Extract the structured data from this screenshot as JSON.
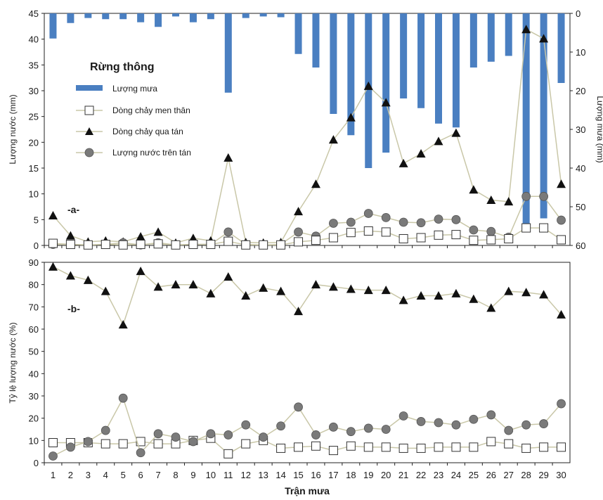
{
  "chart_data": [
    {
      "panel": "a",
      "type": "bar+line",
      "panel_label": "-a-",
      "legend_title": "Rừng thông",
      "legend_placement": "upper-left",
      "xlabel": "",
      "ylabel_left": "Lượng nước (mm)",
      "ylabel_right": "Lượng mưa (mm)",
      "ylim_left": [
        0,
        45
      ],
      "yticks_left": [
        0,
        5,
        10,
        15,
        20,
        25,
        30,
        35,
        40,
        45
      ],
      "ylim_right_inverted": [
        0,
        60
      ],
      "yticks_right": [
        0,
        10,
        20,
        30,
        40,
        50,
        60
      ],
      "grid": false,
      "categories": [
        "1",
        "2",
        "3",
        "4",
        "5",
        "6",
        "7",
        "8",
        "9",
        "10",
        "11",
        "12",
        "13",
        "14",
        "15",
        "16",
        "17",
        "18",
        "19",
        "20",
        "21",
        "22",
        "23",
        "24",
        "25",
        "26",
        "27",
        "28",
        "29",
        "30"
      ],
      "series": [
        {
          "name": "Lượng mưa",
          "kind": "bar",
          "axis": "right",
          "color": "#4a7fc1",
          "values": [
            6.5,
            2.5,
            1.2,
            1.5,
            1.5,
            2.3,
            3.5,
            0.8,
            2.3,
            1.5,
            20.5,
            1.2,
            0.8,
            1.0,
            10.5,
            14.0,
            26.0,
            31.5,
            40.0,
            36.0,
            22.0,
            24.5,
            28.5,
            29.5,
            14.0,
            12.5,
            11.0,
            55.0,
            53.0,
            18.0
          ]
        },
        {
          "name": "Dòng chảy men thân",
          "kind": "line",
          "marker": "square-open",
          "axis": "left",
          "values": [
            0.4,
            0.2,
            0.1,
            0.2,
            0.1,
            0.2,
            0.3,
            0.1,
            0.2,
            0.2,
            0.8,
            0.1,
            0.1,
            0.1,
            0.7,
            1.0,
            1.5,
            2.5,
            2.8,
            2.6,
            1.3,
            1.5,
            2.0,
            2.1,
            1.0,
            1.1,
            1.3,
            3.4,
            3.4,
            1.1
          ]
        },
        {
          "name": "Dòng chảy qua tán",
          "kind": "line",
          "marker": "triangle",
          "axis": "left",
          "values": [
            5.8,
            1.9,
            0.7,
            0.9,
            0.7,
            1.7,
            2.6,
            0.5,
            1.4,
            0.9,
            17.0,
            0.6,
            0.5,
            0.6,
            6.6,
            11.9,
            20.5,
            24.8,
            30.9,
            27.7,
            15.9,
            17.8,
            20.2,
            21.8,
            10.8,
            8.8,
            8.5,
            41.9,
            40.1,
            11.9
          ]
        },
        {
          "name": "Lượng nước trên tán",
          "kind": "line",
          "marker": "circle",
          "axis": "left",
          "values": [
            0.2,
            0.2,
            0.1,
            0.2,
            0.5,
            0.1,
            0.5,
            0.1,
            0.2,
            0.2,
            2.6,
            0.2,
            0.1,
            0.2,
            2.6,
            1.8,
            4.3,
            4.5,
            6.2,
            5.4,
            4.5,
            4.4,
            5.1,
            5.0,
            3.0,
            2.7,
            1.6,
            9.5,
            9.5,
            4.9
          ]
        }
      ]
    },
    {
      "panel": "b",
      "type": "line",
      "panel_label": "-b-",
      "xlabel": "Trận mưa",
      "ylabel": "Tỷ lệ lượng nước (%)",
      "ylim": [
        0,
        90
      ],
      "yticks": [
        0,
        10,
        20,
        30,
        40,
        50,
        60,
        70,
        80,
        90
      ],
      "grid": false,
      "categories": [
        "1",
        "2",
        "3",
        "4",
        "5",
        "6",
        "7",
        "8",
        "9",
        "10",
        "11",
        "12",
        "13",
        "14",
        "15",
        "16",
        "17",
        "18",
        "19",
        "20",
        "21",
        "22",
        "23",
        "24",
        "25",
        "26",
        "27",
        "28",
        "29",
        "30"
      ],
      "series": [
        {
          "name": "Dòng chảy men thân",
          "marker": "square-open",
          "values": [
            9,
            9,
            9,
            8.5,
            8.5,
            9.5,
            8.5,
            8.5,
            10,
            11,
            4,
            8.5,
            10,
            6.5,
            7,
            7.5,
            5.5,
            7.5,
            7,
            7,
            6.5,
            6.5,
            7,
            7,
            7,
            9.5,
            8.5,
            6.5,
            7,
            7
          ]
        },
        {
          "name": "Dòng chảy qua tán",
          "marker": "triangle",
          "values": [
            88,
            84,
            82,
            77,
            62,
            86,
            79,
            80,
            80,
            76,
            83.5,
            75,
            78.5,
            77,
            68,
            80,
            79,
            78,
            77.5,
            77.5,
            73,
            75,
            75,
            76,
            73.5,
            69.5,
            77,
            76.5,
            75.5,
            66.5
          ]
        },
        {
          "name": "Lượng nước trên tán",
          "marker": "circle",
          "values": [
            3,
            7,
            9.5,
            14.5,
            29,
            4.5,
            13,
            11.5,
            9.5,
            13,
            12.5,
            17,
            11.5,
            16.5,
            25,
            12.5,
            16,
            14,
            15.5,
            15,
            21,
            18.5,
            18,
            17,
            19.5,
            21.5,
            14.5,
            17,
            17.5,
            26.5
          ]
        }
      ]
    }
  ]
}
